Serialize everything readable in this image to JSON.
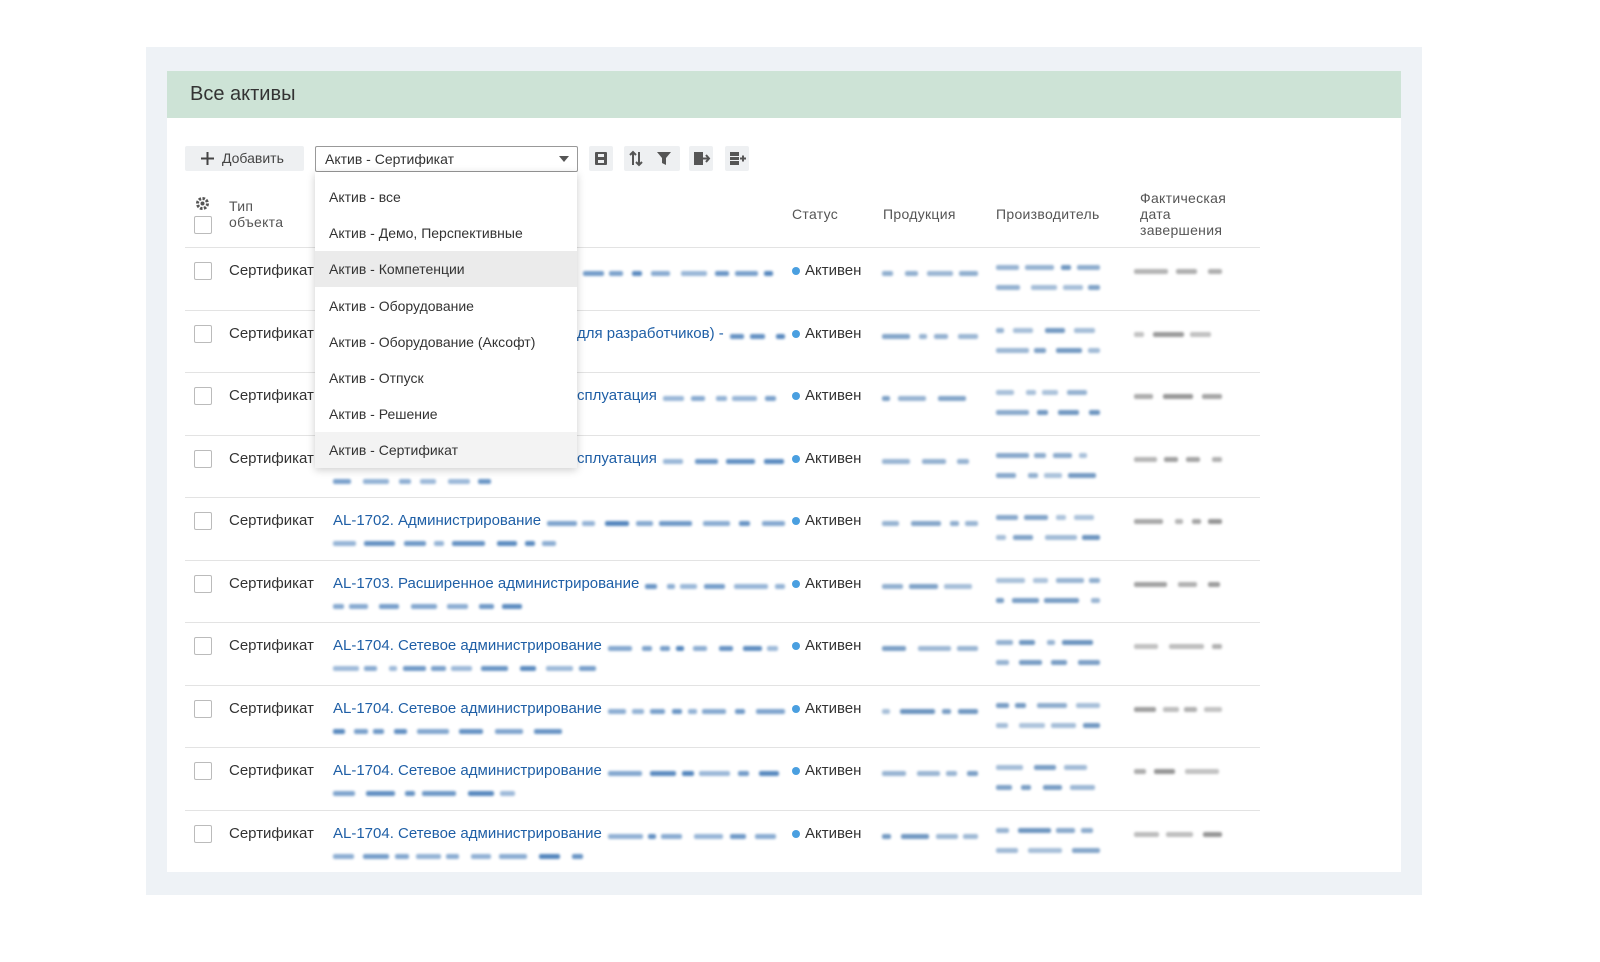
{
  "header": {
    "title": "Все активы"
  },
  "toolbar": {
    "add_button": "Добавить",
    "filter_select": "Актив - Сертификат"
  },
  "dropdown": {
    "options": [
      "Актив - все",
      "Актив - Демо, Перспективные",
      "Актив - Компетенции",
      "Актив - Оборудование",
      "Актив - Оборудование (Аксофт)",
      "Актив - Отпуск",
      "Актив - Решение",
      "Актив - Сертификат"
    ],
    "highlighted": 2,
    "selected": 7
  },
  "table": {
    "columns": {
      "type": "Тип объекта",
      "status": "Статус",
      "product": "Продукция",
      "vendor": "Производитель",
      "end_date": "Фактическая дата завершения"
    },
    "rows": [
      {
        "type": "Сертификат",
        "status": "Активен"
      },
      {
        "type": "Сертификат",
        "name": "для разработчиков) -",
        "status": "Активен"
      },
      {
        "type": "Сертификат",
        "name": "сплуатация",
        "status": "Активен"
      },
      {
        "type": "Сертификат",
        "name": "сплуатация",
        "status": "Активен"
      },
      {
        "type": "Сертификат",
        "name": "AL-1702. Администрирование",
        "status": "Активен"
      },
      {
        "type": "Сертификат",
        "name": "AL-1703. Расширенное администрирование",
        "status": "Активен"
      },
      {
        "type": "Сертификат",
        "name": "AL-1704. Сетевое администрирование",
        "status": "Активен"
      },
      {
        "type": "Сертификат",
        "name": "AL-1704. Сетевое администрирование",
        "status": "Активен"
      },
      {
        "type": "Сертификат",
        "name": "AL-1704. Сетевое администрирование",
        "status": "Активен"
      },
      {
        "type": "Сертификат",
        "name": "AL-1704. Сетевое администрирование",
        "status": "Активен"
      }
    ]
  }
}
